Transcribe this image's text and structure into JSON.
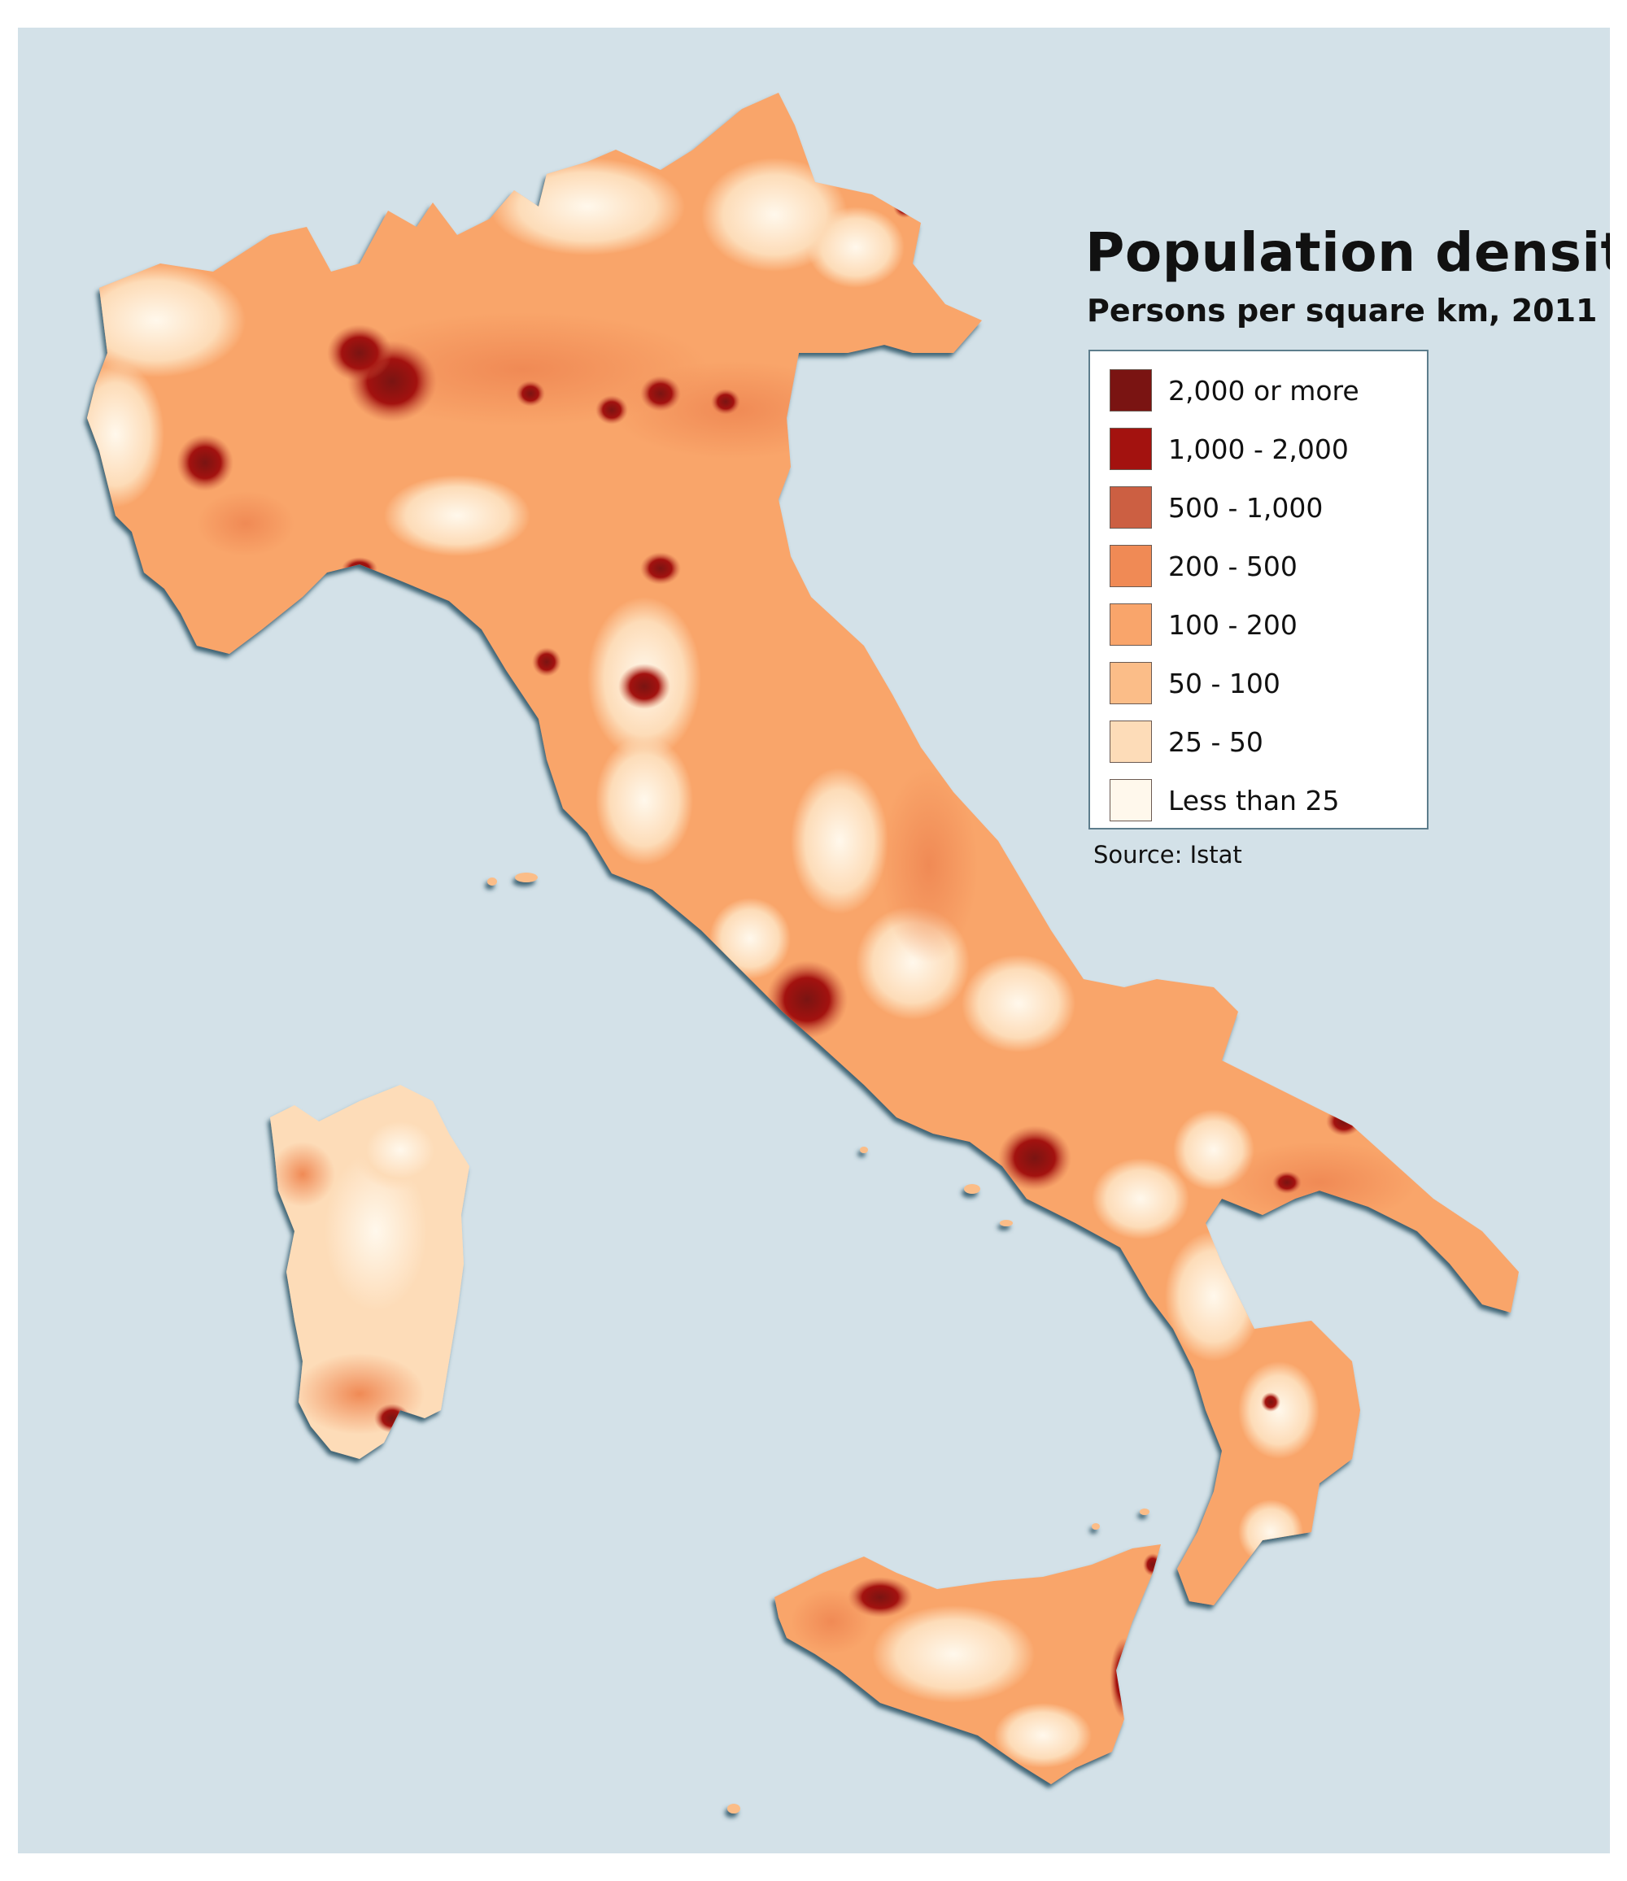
{
  "title": "Population density",
  "subtitle": "Persons per square km, 2011",
  "source": "Source: Istat",
  "colors": {
    "sea": "#d3e1e8",
    "coast": "#2f5566"
  },
  "legend": [
    {
      "label": "2,000 or more",
      "color": "#7a1412"
    },
    {
      "label": "1,000 - 2,000",
      "color": "#a3120f"
    },
    {
      "label": "500 - 1,000",
      "color": "#cc5f42"
    },
    {
      "label": "200 - 500",
      "color": "#f08a55"
    },
    {
      "label": "100 - 200",
      "color": "#f9a56b"
    },
    {
      "label": "50 - 100",
      "color": "#fbbd88"
    },
    {
      "label": "25 - 50",
      "color": "#fddcb8"
    },
    {
      "label": "Less than 25",
      "color": "#fff8ec"
    }
  ]
}
